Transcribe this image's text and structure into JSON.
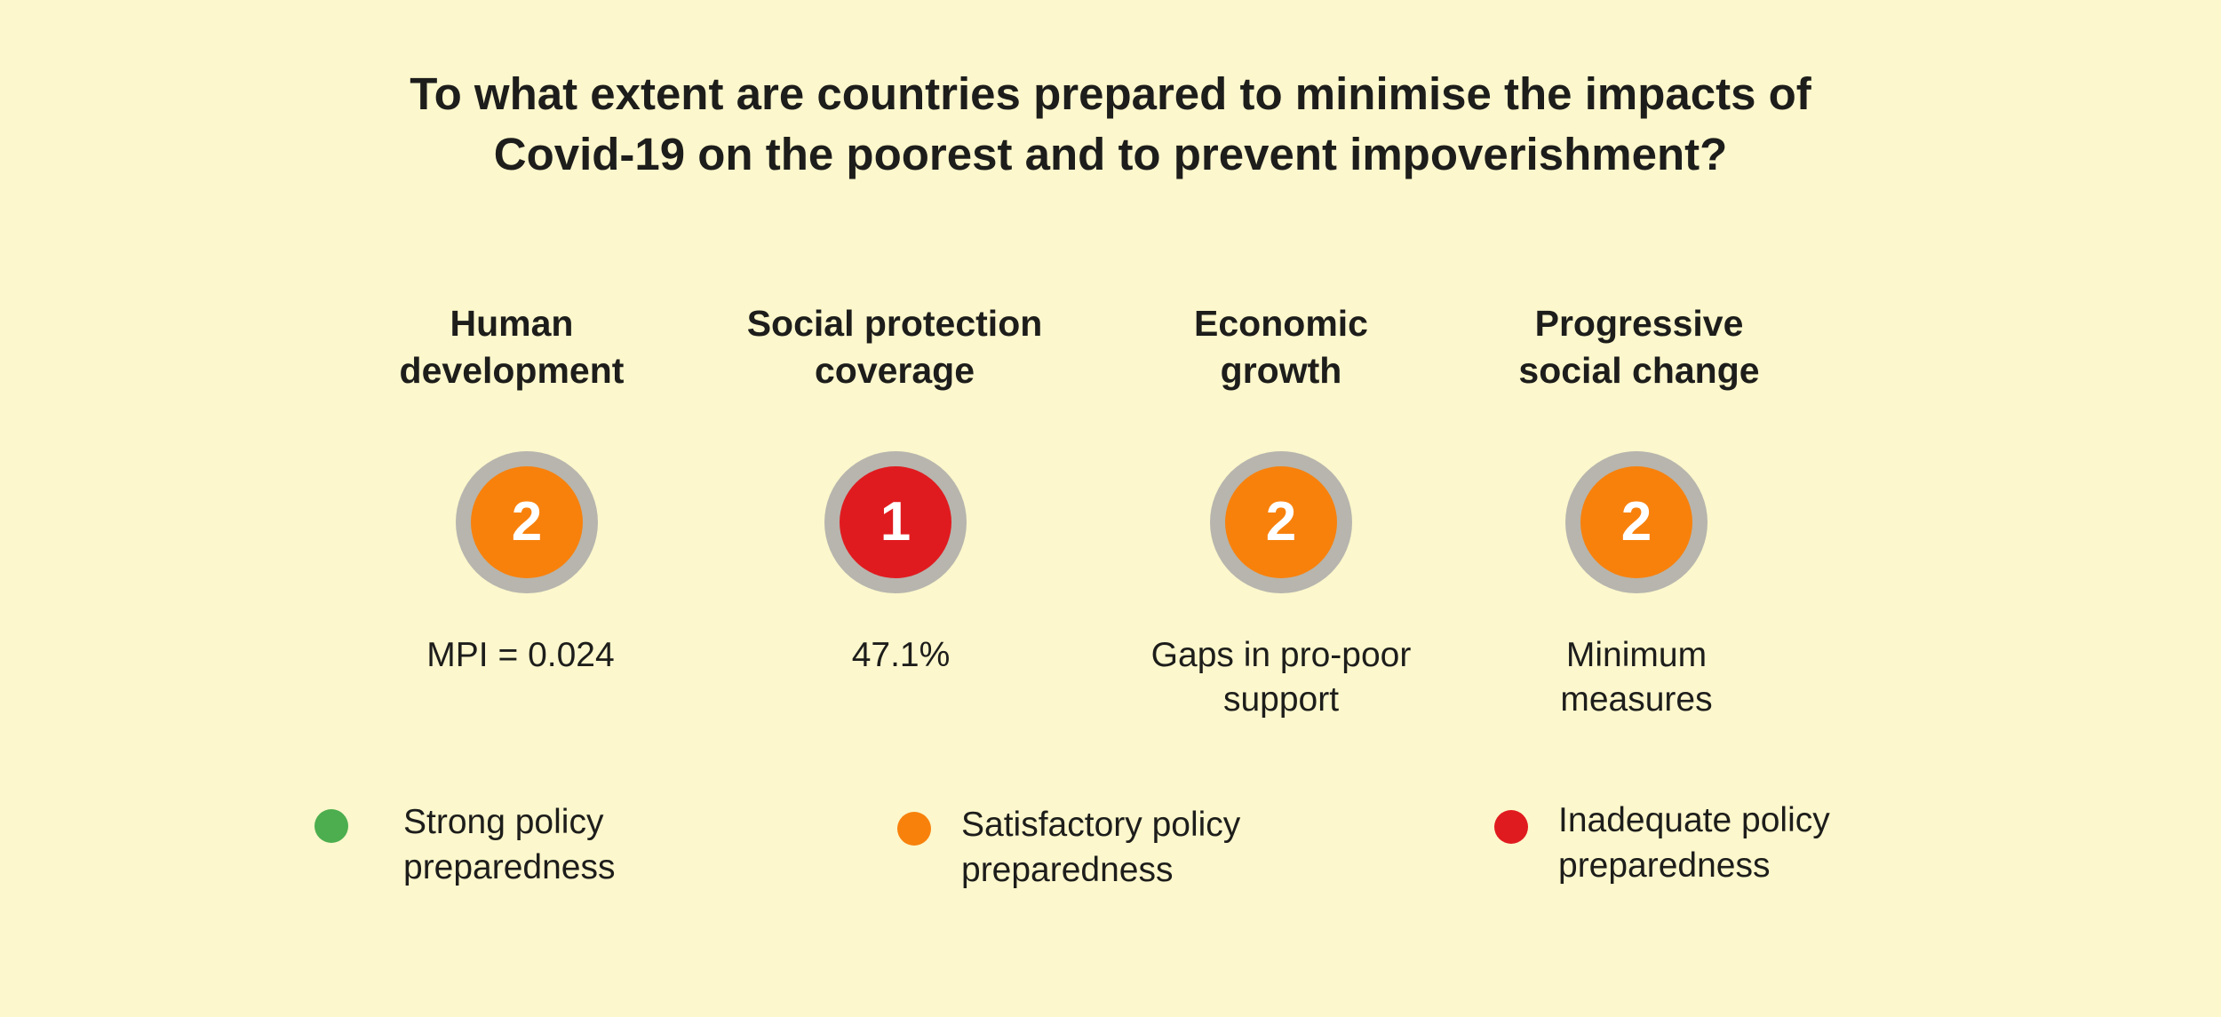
{
  "title": {
    "line1": "To what extent are countries prepared to minimise the impacts of",
    "line2": "Covid-19 on the poorest and to prevent impoverishment?"
  },
  "pillars": [
    {
      "heading": [
        "Human",
        "development"
      ],
      "score": "2",
      "rating": "satisfactory",
      "value": [
        "MPI = 0.024"
      ]
    },
    {
      "heading": [
        "Social protection",
        "coverage"
      ],
      "score": "1",
      "rating": "inadequate",
      "value": [
        "47.1%"
      ]
    },
    {
      "heading": [
        "Economic",
        "growth"
      ],
      "score": "2",
      "rating": "satisfactory",
      "value": [
        "Gaps in pro-poor",
        "support"
      ]
    },
    {
      "heading": [
        "Progressive",
        "social change"
      ],
      "score": "2",
      "rating": "satisfactory",
      "value": [
        "Minimum",
        "measures"
      ]
    }
  ],
  "legend": [
    {
      "key": "strong",
      "label": [
        "Strong policy",
        "preparedness"
      ],
      "color": "#4cae4f"
    },
    {
      "key": "satisfactory",
      "label": [
        "Satisfactory policy",
        "preparedness"
      ],
      "color": "#f8810c"
    },
    {
      "key": "inadequate",
      "label": [
        "Inadequate policy",
        "preparedness"
      ],
      "color": "#e01b1f"
    }
  ],
  "colors": {
    "background": "#fcf7cc",
    "badge_ring": "#b7b5ae",
    "satisfactory": "#f8810c",
    "inadequate": "#e01b1f",
    "strong": "#4cae4f",
    "badge_text": "#ffffff"
  }
}
